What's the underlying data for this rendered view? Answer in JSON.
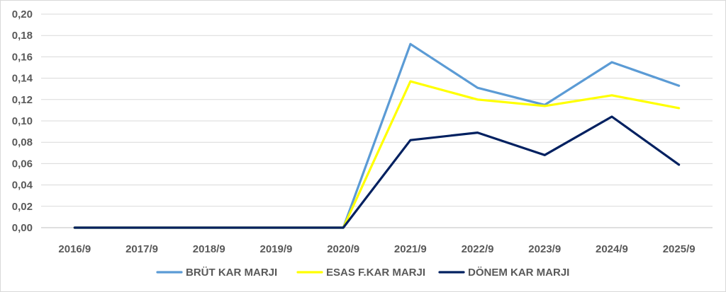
{
  "chart_data": {
    "type": "line",
    "title": "",
    "xlabel": "",
    "ylabel": "",
    "categories": [
      "2016/9",
      "2017/9",
      "2018/9",
      "2019/9",
      "2020/9",
      "2021/9",
      "2022/9",
      "2023/9",
      "2024/9",
      "2025/9"
    ],
    "ylim": [
      0,
      0.2
    ],
    "ytick_step": 0.02,
    "ytick_labels": [
      "0,00",
      "0,02",
      "0,04",
      "0,06",
      "0,08",
      "0,10",
      "0,12",
      "0,14",
      "0,16",
      "0,18",
      "0,20"
    ],
    "grid": true,
    "legend_position": "bottom",
    "series": [
      {
        "name": "BRÜT KAR MARJI",
        "color": "#5b9bd5",
        "values": [
          0,
          0,
          0,
          0,
          0,
          0.172,
          0.131,
          0.115,
          0.155,
          0.133
        ]
      },
      {
        "name": "ESAS F.KAR MARJI",
        "color": "#ffff00",
        "values": [
          0,
          0,
          0,
          0,
          0,
          0.137,
          0.12,
          0.114,
          0.124,
          0.112
        ]
      },
      {
        "name": "DÖNEM KAR MARJI",
        "color": "#002060",
        "values": [
          0,
          0,
          0,
          0,
          0,
          0.082,
          0.089,
          0.068,
          0.104,
          0.059
        ]
      }
    ]
  }
}
